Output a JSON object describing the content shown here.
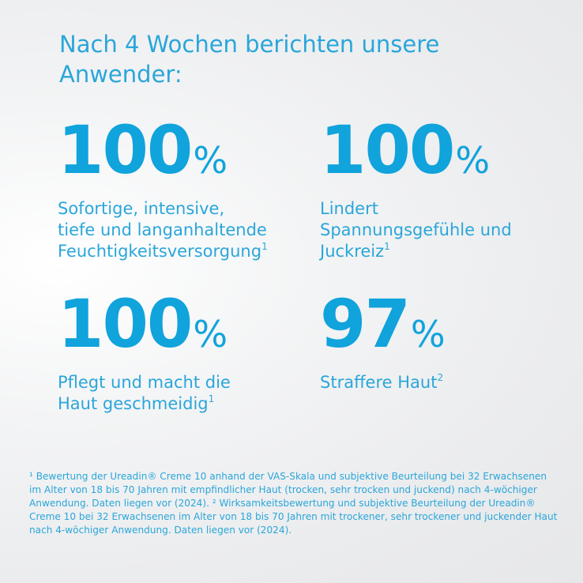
{
  "heading": "Nach 4 Wochen berichten unsere Anwender:",
  "stats": [
    {
      "value": "100",
      "unit": "%",
      "text": "Sofortige, intensive,\ntiefe und langanhaltende\nFeuchtigkeitsversorgung",
      "ref": "1"
    },
    {
      "value": "100",
      "unit": "%",
      "text": "Lindert\nSpannungsgefühle und\nJuckreiz",
      "ref": "1"
    },
    {
      "value": "100",
      "unit": "%",
      "text": "Pflegt und macht die\nHaut geschmeidig",
      "ref": "1"
    },
    {
      "value": "97",
      "unit": "%",
      "text": "Straffere Haut",
      "ref": "2"
    }
  ],
  "footnote": "¹ Bewertung der Ureadin® Creme 10 anhand der VAS-Skala und subjektive Beurteilung bei 32 Erwachsenen im Alter von 18 bis 70 Jahren mit empfindlicher Haut (trocken, sehr trocken und juckend) nach 4-wöchiger Anwendung. Daten liegen vor (2024). ² Wirksamkeitsbewertung und subjektive Beurteilung der Ureadin® Creme 10 bei 32 Erwachsenen im Alter von 18 bis 70 Jahren mit trockener, sehr trockener und juckender Haut nach 4-wöchiger Anwendung. Daten liegen vor (2024).",
  "colors": {
    "accent": "#10a3dc",
    "text": "#2aa6da"
  }
}
